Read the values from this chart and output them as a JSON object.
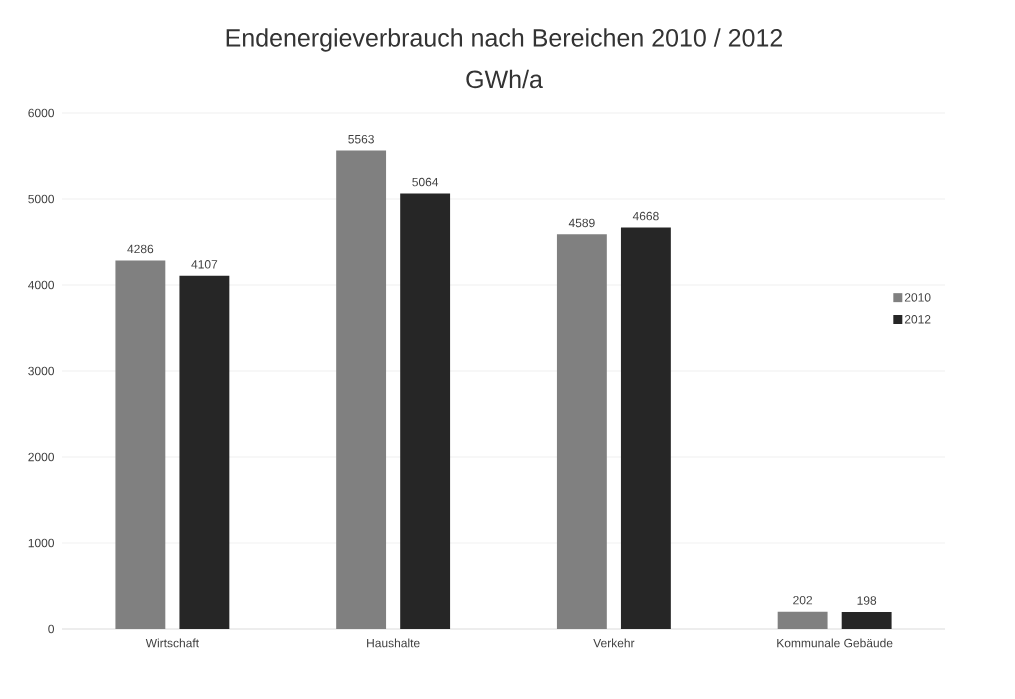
{
  "chart_data": {
    "type": "bar",
    "title": "Endenergieverbrauch nach Bereichen 2010 / 2012",
    "subtitle": "GWh/a",
    "categories": [
      "Wirtschaft",
      "Haushalte",
      "Verkehr",
      "Kommunale Gebäude"
    ],
    "series": [
      {
        "name": "2010",
        "color": "#808080",
        "values": [
          4286,
          5563,
          4589,
          202
        ]
      },
      {
        "name": "2012",
        "color": "#262626",
        "values": [
          4107,
          5064,
          4668,
          198
        ]
      }
    ],
    "ylim": [
      0,
      6000
    ],
    "yticks": [
      0,
      1000,
      2000,
      3000,
      4000,
      5000,
      6000
    ],
    "grid": "y",
    "legend": "right",
    "data_labels": true
  }
}
